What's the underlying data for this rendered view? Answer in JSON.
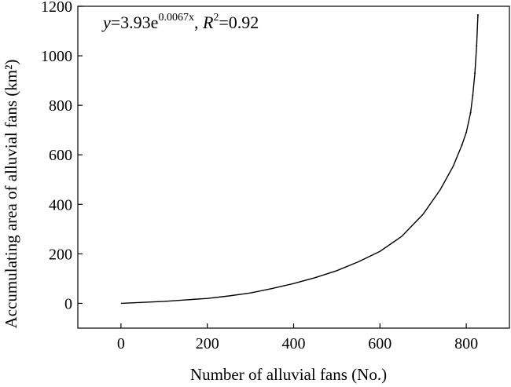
{
  "chart_data": {
    "type": "line",
    "xlabel": "Number of alluvial fans (No.)",
    "ylabel": "Accumulating area of alluvial fans (km²)",
    "xlim": [
      -100,
      900
    ],
    "ylim": [
      -100,
      1200
    ],
    "x_ticks": [
      0,
      200,
      400,
      600,
      800
    ],
    "y_ticks": [
      0,
      200,
      400,
      600,
      800,
      1000,
      1200
    ],
    "grid": false,
    "annotation": {
      "y_var": "y",
      "eq_body": "=3.93e",
      "exponent": "0.0067x",
      "sep": ", ",
      "r_var": "R",
      "r_sup": "2",
      "r_rest": "=0.92"
    },
    "series": [
      {
        "x": [
          0,
          50,
          100,
          150,
          200,
          250,
          300,
          350,
          400,
          450,
          500,
          550,
          600,
          650,
          700,
          740,
          770,
          790,
          800,
          810,
          815,
          820,
          824,
          827
        ],
        "y": [
          0,
          4,
          8,
          14,
          20,
          30,
          42,
          60,
          80,
          104,
          132,
          168,
          210,
          270,
          360,
          460,
          555,
          640,
          690,
          770,
          840,
          930,
          1040,
          1165
        ]
      }
    ]
  }
}
